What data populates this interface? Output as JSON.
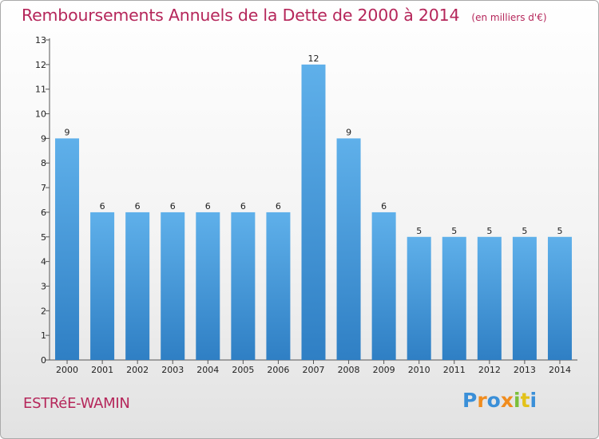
{
  "chart_data": {
    "type": "bar",
    "title": "Remboursements Annuels de la Dette de 2000 à 2014",
    "unit": "(en milliers d'€)",
    "categories": [
      "2000",
      "2001",
      "2002",
      "2003",
      "2004",
      "2005",
      "2006",
      "2007",
      "2008",
      "2009",
      "2010",
      "2011",
      "2012",
      "2013",
      "2014"
    ],
    "values": [
      9,
      6,
      6,
      6,
      6,
      6,
      6,
      12,
      9,
      6,
      5,
      5,
      5,
      5,
      5
    ],
    "ylim": [
      0,
      13
    ],
    "yticks": [
      0,
      1,
      2,
      3,
      4,
      5,
      6,
      7,
      8,
      9,
      10,
      11,
      12,
      13
    ],
    "xlabel": "",
    "ylabel": "",
    "grid": false,
    "bar_color": "#4a9fde"
  },
  "footer": {
    "commune": "ESTRéE-WAMIN",
    "logo_letters": [
      {
        "ch": "P",
        "color": "#3a8fd8"
      },
      {
        "ch": "r",
        "color": "#f08c1e"
      },
      {
        "ch": "o",
        "color": "#3a8fd8"
      },
      {
        "ch": "x",
        "color": "#f08c1e"
      },
      {
        "ch": "i",
        "color": "#7bbf3a"
      },
      {
        "ch": "t",
        "color": "#e3c21a"
      },
      {
        "ch": "i",
        "color": "#3a8fd8"
      }
    ]
  }
}
